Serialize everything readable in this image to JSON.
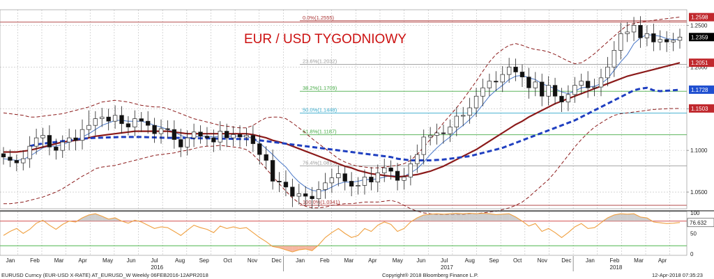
{
  "chart_data": {
    "type": "candlestick",
    "title": "EUR / USD TYGODNIOWY",
    "y_range": [
      1.03,
      1.262
    ],
    "y_ticks": [
      {
        "value": 1.05,
        "label": "1.0500"
      },
      {
        "value": 1.1,
        "label": "1.1000"
      },
      {
        "value": 1.15,
        "label": "1.1500"
      },
      {
        "value": 1.2,
        "label": "1.2000"
      },
      {
        "value": 1.25,
        "label": "1.2500"
      }
    ],
    "months": [
      "Jan",
      "Feb",
      "Mar",
      "Apr",
      "May",
      "Jun",
      "Jul",
      "Aug",
      "Sep",
      "Oct",
      "Nov",
      "Dec",
      "Jan",
      "Feb",
      "Mar",
      "Apr",
      "May",
      "Jun",
      "Jul",
      "Aug",
      "Sep",
      "Oct",
      "Nov",
      "Dec",
      "Jan",
      "Feb",
      "Mar",
      "Apr"
    ],
    "years": [
      {
        "label": "2016",
        "month_index": 6
      },
      {
        "label": "2017",
        "month_index": 18
      },
      {
        "label": "2018",
        "month_index": 25
      }
    ],
    "fib_levels": [
      {
        "value": 1.2555,
        "label": "0.0%(1.2555)",
        "color": "#aa3333"
      },
      {
        "value": 1.2032,
        "label": "23.6%(1.2032)",
        "color": "#999999"
      },
      {
        "value": 1.1709,
        "label": "38.2%(1.1709)",
        "color": "#44aa44"
      },
      {
        "value": 1.1448,
        "label": "50.0%(1.1448)",
        "color": "#33aacc"
      },
      {
        "value": 1.1187,
        "label": "61.8%(1.1187)",
        "color": "#44aa44"
      },
      {
        "value": 1.0815,
        "label": "76.4%(1.0815)",
        "color": "#999999"
      },
      {
        "value": 1.0341,
        "label": "100.0%(1.0341)",
        "color": "#aa3333"
      }
    ],
    "price_tags": [
      {
        "value": 1.2598,
        "label": "1.2598",
        "color": "#c0282d"
      },
      {
        "value": 1.2359,
        "label": "1.2359",
        "color": "#000000"
      },
      {
        "value": 1.2051,
        "label": "1.2051",
        "color": "#c0282d"
      },
      {
        "value": 1.1728,
        "label": "1.1728",
        "color": "#1f4fd0"
      },
      {
        "value": 1.1503,
        "label": "1.1503",
        "color": "#c0282d"
      }
    ],
    "close": [
      1.092,
      1.088,
      1.085,
      1.09,
      1.105,
      1.115,
      1.118,
      1.104,
      1.1,
      1.11,
      1.115,
      1.112,
      1.125,
      1.13,
      1.138,
      1.14,
      1.135,
      1.142,
      1.132,
      1.128,
      1.138,
      1.135,
      1.13,
      1.12,
      1.126,
      1.125,
      1.113,
      1.104,
      1.115,
      1.122,
      1.117,
      1.115,
      1.11,
      1.123,
      1.115,
      1.119,
      1.116,
      1.118,
      1.108,
      1.095,
      1.088,
      1.063,
      1.062,
      1.056,
      1.045,
      1.048,
      1.045,
      1.042,
      1.053,
      1.061,
      1.067,
      1.072,
      1.063,
      1.057,
      1.058,
      1.068,
      1.062,
      1.073,
      1.079,
      1.075,
      1.064,
      1.068,
      1.084,
      1.095,
      1.116,
      1.118,
      1.121,
      1.12,
      1.128,
      1.141,
      1.142,
      1.151,
      1.165,
      1.175,
      1.183,
      1.182,
      1.191,
      1.2,
      1.194,
      1.188,
      1.175,
      1.182,
      1.165,
      1.178,
      1.165,
      1.158,
      1.167,
      1.178,
      1.183,
      1.175,
      1.176,
      1.187,
      1.2,
      1.22,
      1.24,
      1.242,
      1.25,
      1.235,
      1.24,
      1.23,
      1.233,
      1.23,
      1.232,
      1.2359
    ],
    "high_off": [
      0.008,
      0.009,
      0.007,
      0.01,
      0.012,
      0.011,
      0.009,
      0.012,
      0.01,
      0.008,
      0.011,
      0.01,
      0.012,
      0.018,
      0.009,
      0.011,
      0.01,
      0.012,
      0.011,
      0.009,
      0.01,
      0.008,
      0.012,
      0.009,
      0.011,
      0.01,
      0.011,
      0.013,
      0.009,
      0.01,
      0.008,
      0.011,
      0.01,
      0.012,
      0.009,
      0.01,
      0.011,
      0.009,
      0.012,
      0.011,
      0.01,
      0.013,
      0.011,
      0.014,
      0.01,
      0.012,
      0.009,
      0.011,
      0.01,
      0.012,
      0.011,
      0.01,
      0.009,
      0.011,
      0.01,
      0.009,
      0.012,
      0.01,
      0.011,
      0.009,
      0.01,
      0.011,
      0.01,
      0.012,
      0.009,
      0.01,
      0.011,
      0.01,
      0.009,
      0.011,
      0.01,
      0.012,
      0.01,
      0.011,
      0.009,
      0.012,
      0.01,
      0.011,
      0.01,
      0.009,
      0.011,
      0.012,
      0.01,
      0.011,
      0.009,
      0.01,
      0.011,
      0.01,
      0.009,
      0.012,
      0.01,
      0.011,
      0.012,
      0.011,
      0.013,
      0.012,
      0.01,
      0.011,
      0.01,
      0.012,
      0.011,
      0.01,
      0.009,
      0.01
    ],
    "low_off": [
      0.009,
      0.008,
      0.01,
      0.009,
      0.011,
      0.01,
      0.012,
      0.01,
      0.011,
      0.009,
      0.01,
      0.012,
      0.011,
      0.01,
      0.012,
      0.01,
      0.011,
      0.009,
      0.012,
      0.01,
      0.011,
      0.013,
      0.01,
      0.011,
      0.012,
      0.01,
      0.011,
      0.012,
      0.01,
      0.011,
      0.009,
      0.01,
      0.012,
      0.01,
      0.011,
      0.01,
      0.012,
      0.011,
      0.01,
      0.012,
      0.011,
      0.01,
      0.012,
      0.011,
      0.013,
      0.01,
      0.011,
      0.012,
      0.01,
      0.011,
      0.012,
      0.01,
      0.011,
      0.012,
      0.01,
      0.011,
      0.01,
      0.012,
      0.011,
      0.01,
      0.012,
      0.011,
      0.01,
      0.011,
      0.012,
      0.01,
      0.011,
      0.012,
      0.01,
      0.011,
      0.012,
      0.01,
      0.011,
      0.012,
      0.01,
      0.011,
      0.012,
      0.01,
      0.011,
      0.012,
      0.013,
      0.01,
      0.012,
      0.011,
      0.01,
      0.012,
      0.011,
      0.01,
      0.011,
      0.012,
      0.01,
      0.011,
      0.01,
      0.012,
      0.011,
      0.01,
      0.011,
      0.012,
      0.01,
      0.011,
      0.01,
      0.012,
      0.011,
      0.01
    ],
    "sma_dark": [
      1.098,
      1.098,
      1.098,
      1.099,
      1.1,
      1.102,
      1.104,
      1.106,
      1.108,
      1.11,
      1.111,
      1.112,
      1.113,
      1.115,
      1.117,
      1.118,
      1.119,
      1.12,
      1.121,
      1.122,
      1.123,
      1.123,
      1.123,
      1.123,
      1.123,
      1.123,
      1.122,
      1.121,
      1.12,
      1.12,
      1.12,
      1.12,
      1.12,
      1.12,
      1.12,
      1.12,
      1.12,
      1.12,
      1.119,
      1.117,
      1.115,
      1.112,
      1.11,
      1.108,
      1.105,
      1.102,
      1.099,
      1.096,
      1.093,
      1.09,
      1.087,
      1.084,
      1.081,
      1.079,
      1.076,
      1.074,
      1.072,
      1.071,
      1.07,
      1.069,
      1.068,
      1.069,
      1.07,
      1.071,
      1.073,
      1.075,
      1.078,
      1.081,
      1.085,
      1.089,
      1.093,
      1.097,
      1.101,
      1.106,
      1.111,
      1.116,
      1.121,
      1.126,
      1.131,
      1.135,
      1.14,
      1.144,
      1.148,
      1.152,
      1.156,
      1.159,
      1.162,
      1.165,
      1.168,
      1.171,
      1.174,
      1.177,
      1.18,
      1.183,
      1.186,
      1.189,
      1.191,
      1.193,
      1.195,
      1.197,
      1.199,
      1.201,
      1.203,
      1.2051
    ],
    "sma_blue_dash": [
      null,
      null,
      null,
      null,
      1.105,
      1.107,
      1.108,
      1.109,
      1.11,
      1.111,
      1.112,
      1.113,
      1.114,
      1.1145,
      1.115,
      1.1152,
      1.1155,
      1.1158,
      1.116,
      1.116,
      1.116,
      1.116,
      1.1158,
      1.1155,
      1.1152,
      1.115,
      1.115,
      1.115,
      1.1148,
      1.1145,
      1.1145,
      1.1145,
      1.1143,
      1.114,
      1.114,
      1.1138,
      1.1136,
      1.1135,
      1.113,
      1.112,
      1.111,
      1.11,
      1.109,
      1.108,
      1.107,
      1.106,
      1.105,
      1.104,
      1.103,
      1.102,
      1.101,
      1.1,
      1.099,
      1.098,
      1.097,
      1.096,
      1.095,
      1.094,
      1.093,
      1.092,
      1.09,
      1.089,
      1.088,
      1.088,
      1.088,
      1.088,
      1.0885,
      1.089,
      1.09,
      1.091,
      1.092,
      1.093,
      1.095,
      1.097,
      1.099,
      1.101,
      1.103,
      1.106,
      1.109,
      1.112,
      1.115,
      1.118,
      1.121,
      1.124,
      1.127,
      1.13,
      1.133,
      1.136,
      1.14,
      1.144,
      1.148,
      1.152,
      1.156,
      1.16,
      1.164,
      1.168,
      1.172,
      1.174,
      1.175,
      1.172,
      1.171,
      1.1715,
      1.172,
      1.1728
    ],
    "sma_blue_thin": [
      1.09,
      1.089,
      1.088,
      1.089,
      1.093,
      1.098,
      1.103,
      1.105,
      1.105,
      1.107,
      1.11,
      1.112,
      1.116,
      1.12,
      1.125,
      1.13,
      1.133,
      1.136,
      1.136,
      1.135,
      1.135,
      1.135,
      1.133,
      1.13,
      1.128,
      1.125,
      1.122,
      1.118,
      1.115,
      1.116,
      1.117,
      1.117,
      1.116,
      1.117,
      1.117,
      1.117,
      1.117,
      1.117,
      1.114,
      1.109,
      1.102,
      1.095,
      1.087,
      1.08,
      1.07,
      1.062,
      1.056,
      1.052,
      1.051,
      1.052,
      1.056,
      1.06,
      1.062,
      1.062,
      1.063,
      1.065,
      1.065,
      1.066,
      1.068,
      1.07,
      1.069,
      1.069,
      1.073,
      1.078,
      1.086,
      1.095,
      1.103,
      1.11,
      1.116,
      1.124,
      1.13,
      1.137,
      1.145,
      1.155,
      1.165,
      1.172,
      1.178,
      1.185,
      1.189,
      1.19,
      1.187,
      1.185,
      1.18,
      1.177,
      1.174,
      1.17,
      1.168,
      1.171,
      1.175,
      1.176,
      1.177,
      1.18,
      1.186,
      1.196,
      1.206,
      1.215,
      1.228,
      1.235,
      1.239,
      1.238,
      1.237,
      1.234,
      1.233,
      1.233
    ],
    "bb_upper": [
      1.145,
      1.144,
      1.143,
      1.142,
      1.14,
      1.14,
      1.141,
      1.142,
      1.143,
      1.144,
      1.146,
      1.148,
      1.15,
      1.152,
      1.155,
      1.158,
      1.159,
      1.16,
      1.159,
      1.158,
      1.156,
      1.154,
      1.153,
      1.152,
      1.152,
      1.15,
      1.147,
      1.144,
      1.141,
      1.138,
      1.136,
      1.134,
      1.132,
      1.13,
      1.129,
      1.128,
      1.127,
      1.127,
      1.13,
      1.135,
      1.139,
      1.14,
      1.14,
      1.138,
      1.133,
      1.127,
      1.121,
      1.114,
      1.108,
      1.102,
      1.096,
      1.09,
      1.086,
      1.083,
      1.081,
      1.08,
      1.079,
      1.079,
      1.08,
      1.081,
      1.082,
      1.084,
      1.088,
      1.095,
      1.104,
      1.113,
      1.123,
      1.133,
      1.142,
      1.151,
      1.161,
      1.172,
      1.183,
      1.195,
      1.206,
      1.215,
      1.221,
      1.226,
      1.228,
      1.226,
      1.223,
      1.221,
      1.22,
      1.218,
      1.215,
      1.211,
      1.207,
      1.204,
      1.205,
      1.21,
      1.216,
      1.223,
      1.23,
      1.237,
      1.244,
      1.25,
      1.252,
      1.254,
      1.255,
      1.256,
      1.257,
      1.258,
      1.259,
      1.2598
    ],
    "bb_lower": [
      1.036,
      1.036,
      1.037,
      1.038,
      1.04,
      1.042,
      1.044,
      1.047,
      1.05,
      1.054,
      1.059,
      1.064,
      1.069,
      1.073,
      1.078,
      1.08,
      1.081,
      1.082,
      1.084,
      1.086,
      1.088,
      1.09,
      1.092,
      1.094,
      1.095,
      1.096,
      1.097,
      1.099,
      1.1,
      1.102,
      1.104,
      1.105,
      1.105,
      1.106,
      1.105,
      1.104,
      1.103,
      1.101,
      1.095,
      1.087,
      1.078,
      1.069,
      1.06,
      1.051,
      1.043,
      1.037,
      1.033,
      1.031,
      1.031,
      1.032,
      1.034,
      1.035,
      1.036,
      1.036,
      1.037,
      1.038,
      1.038,
      1.038,
      1.039,
      1.04,
      1.038,
      1.034,
      1.03,
      1.027,
      1.025,
      1.024,
      1.023,
      1.023,
      1.023,
      1.023,
      1.023,
      1.024,
      1.024,
      1.025,
      1.026,
      1.027,
      1.029,
      1.031,
      1.034,
      1.038,
      1.044,
      1.051,
      1.058,
      1.065,
      1.074,
      1.084,
      1.094,
      1.104,
      1.113,
      1.121,
      1.128,
      1.133,
      1.138,
      1.142,
      1.144,
      1.145,
      1.146,
      1.147,
      1.148,
      1.149,
      1.1495,
      1.15,
      1.1502,
      1.1503
    ]
  },
  "oscillator": {
    "y_range": [
      0,
      100
    ],
    "y_ticks": [
      {
        "value": 0,
        "label": "0"
      },
      {
        "value": 50,
        "label": "50"
      },
      {
        "value": 100,
        "label": "100"
      }
    ],
    "levels": [
      80,
      20
    ],
    "last_value": "76.632",
    "values": [
      45,
      55,
      62,
      50,
      60,
      75,
      82,
      70,
      60,
      72,
      80,
      78,
      88,
      95,
      98,
      92,
      85,
      88,
      80,
      75,
      82,
      78,
      70,
      62,
      66,
      64,
      55,
      45,
      58,
      70,
      64,
      60,
      52,
      68,
      62,
      66,
      62,
      64,
      52,
      40,
      30,
      18,
      15,
      10,
      5,
      10,
      12,
      8,
      22,
      40,
      52,
      62,
      50,
      40,
      45,
      62,
      55,
      70,
      78,
      72,
      55,
      62,
      78,
      88,
      95,
      97,
      98,
      97,
      98,
      99,
      98,
      99,
      98,
      99,
      98,
      96,
      97,
      98,
      90,
      80,
      68,
      74,
      55,
      62,
      52,
      40,
      52,
      66,
      74,
      62,
      64,
      76,
      88,
      95,
      98,
      97,
      98,
      90,
      88,
      78,
      76,
      74,
      75,
      76.6
    ]
  },
  "footer": {
    "left": "EURUSD Curncy (EUR-USD X-RATE) AT_EURUSD_W  Weekly 06FEB2016-12APR2018",
    "center": "Copyright® 2018 Bloomberg Finance L.P.",
    "right": "12-Apr-2018 07:35:23"
  }
}
